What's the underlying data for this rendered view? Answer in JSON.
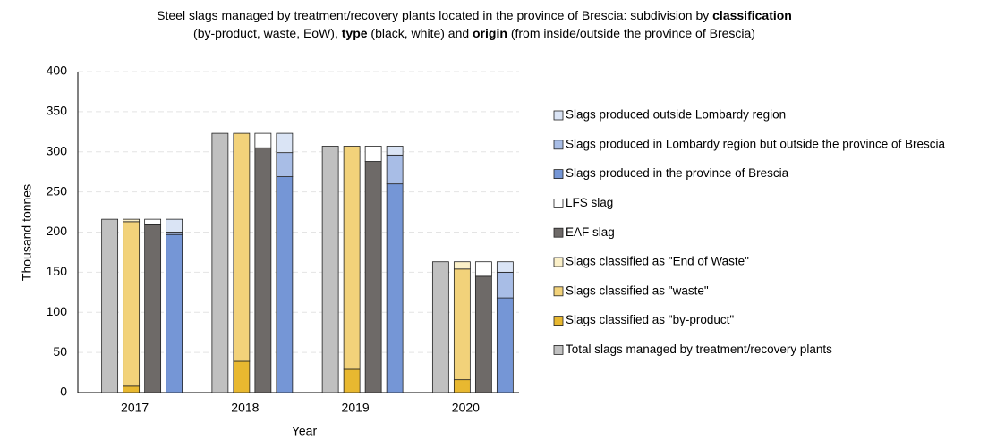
{
  "chart_data": {
    "type": "stacked-grouped-bar",
    "title": [
      [
        {
          "text": "Steel slags managed by treatment/recovery plants located in the province of Brescia: subdivision by ",
          "bold": false
        },
        {
          "text": "classification",
          "bold": true
        }
      ],
      [
        {
          "text": "(by-product, waste, EoW), ",
          "bold": false
        },
        {
          "text": "type",
          "bold": true
        },
        {
          "text": " (black, white) and ",
          "bold": false
        },
        {
          "text": "origin",
          "bold": true
        },
        {
          "text": " (from inside/outside the province of Brescia)",
          "bold": false
        }
      ]
    ],
    "x_label": "Year",
    "y_label": "Thousand tonnes",
    "categories": [
      "2017",
      "2018",
      "2019",
      "2020"
    ],
    "ylim": [
      0,
      400
    ],
    "yticks": [
      0,
      50,
      100,
      150,
      200,
      250,
      300,
      350,
      400
    ],
    "grid": true,
    "series": [
      {
        "name": "Total slags managed by treatment/recovery plants",
        "color": "#c0c0c0",
        "stack": 0,
        "values": [
          216,
          323,
          307,
          163
        ]
      },
      {
        "name": "Slags classified as \"by-product\"",
        "color": "#e8b830",
        "stack": 1,
        "values": [
          8,
          39,
          29,
          16
        ]
      },
      {
        "name": "Slags classified as \"waste\"",
        "color": "#f2d27a",
        "stack": 1,
        "values": [
          205,
          284,
          278,
          138
        ]
      },
      {
        "name": "Slags classified as \"End of Waste\"",
        "color": "#fbf0c8",
        "stack": 1,
        "values": [
          3,
          0,
          0,
          9
        ]
      },
      {
        "name": "EAF slag",
        "color": "#6e6a68",
        "stack": 2,
        "values": [
          209,
          305,
          288,
          145
        ]
      },
      {
        "name": "LFS slag",
        "color": "#ffffff",
        "stack": 2,
        "values": [
          7,
          18,
          19,
          18
        ]
      },
      {
        "name": "Slags produced in the province of Brescia",
        "color": "#7596d6",
        "stack": 3,
        "values": [
          197,
          269,
          260,
          118
        ]
      },
      {
        "name": "Slags produced in Lombardy region but outside the province of Brescia",
        "color": "#a8bde6",
        "stack": 3,
        "values": [
          3,
          30,
          36,
          32
        ]
      },
      {
        "name": "Slags produced outside Lombardy region",
        "color": "#dae4f5",
        "stack": 3,
        "values": [
          16,
          24,
          11,
          13
        ]
      }
    ]
  }
}
